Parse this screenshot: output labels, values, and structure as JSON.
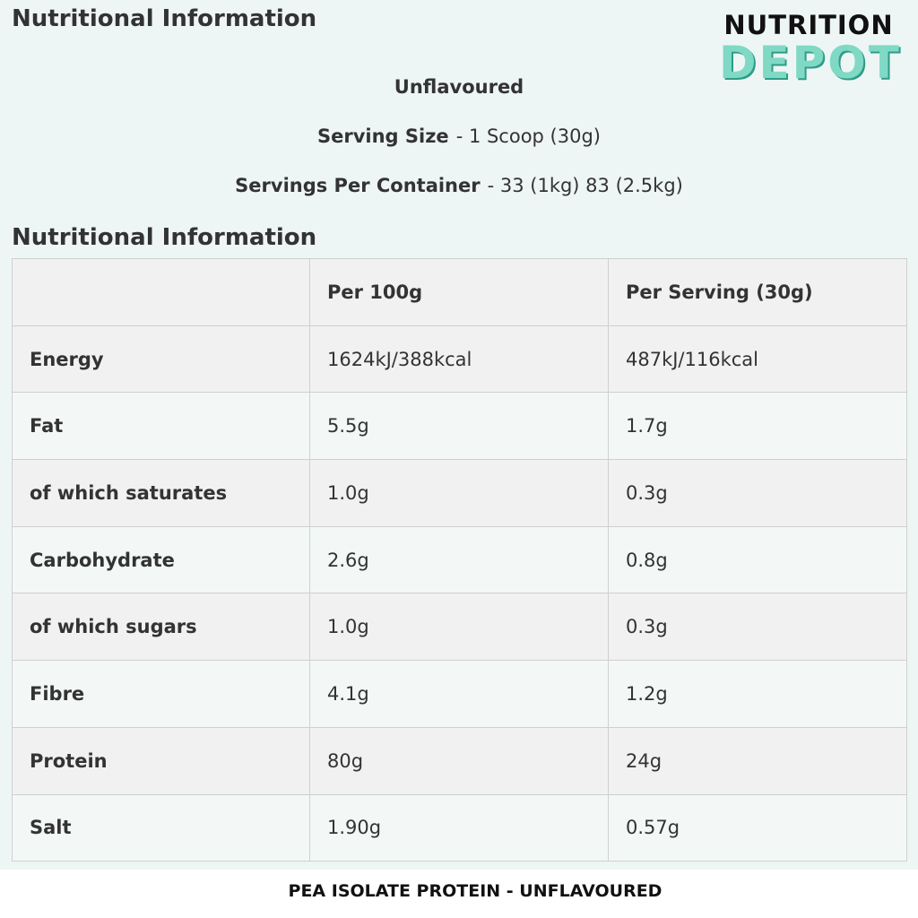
{
  "header": {
    "title": "Nutritional Information",
    "logo": {
      "line1": "NUTRITION",
      "line2": "DEPOT"
    }
  },
  "summary": {
    "flavour": "Unflavoured",
    "serving_size": {
      "label": "Serving Size",
      "value": "- 1 Scoop (30g)"
    },
    "servings_per_container": {
      "label": "Servings Per Container",
      "value": "- 33 (1kg) 83 (2.5kg)"
    }
  },
  "table": {
    "title": "Nutritional Information",
    "columns": [
      "Per 100g",
      "Per Serving (30g)"
    ],
    "rows": [
      [
        "Energy",
        "1624kJ/388kcal",
        "487kJ/116kcal"
      ],
      [
        "Fat",
        "5.5g",
        "1.7g"
      ],
      [
        "of which saturates",
        "1.0g",
        "0.3g"
      ],
      [
        "Carbohydrate",
        "2.6g",
        "0.8g"
      ],
      [
        "of which sugars",
        "1.0g",
        "0.3g"
      ],
      [
        "Fibre",
        "4.1g",
        "1.2g"
      ],
      [
        "Protein",
        "80g",
        "24g"
      ],
      [
        "Salt",
        "1.90g",
        "0.57g"
      ]
    ]
  },
  "caption": "PEA ISOLATE PROTEIN - UNFLAVOURED"
}
